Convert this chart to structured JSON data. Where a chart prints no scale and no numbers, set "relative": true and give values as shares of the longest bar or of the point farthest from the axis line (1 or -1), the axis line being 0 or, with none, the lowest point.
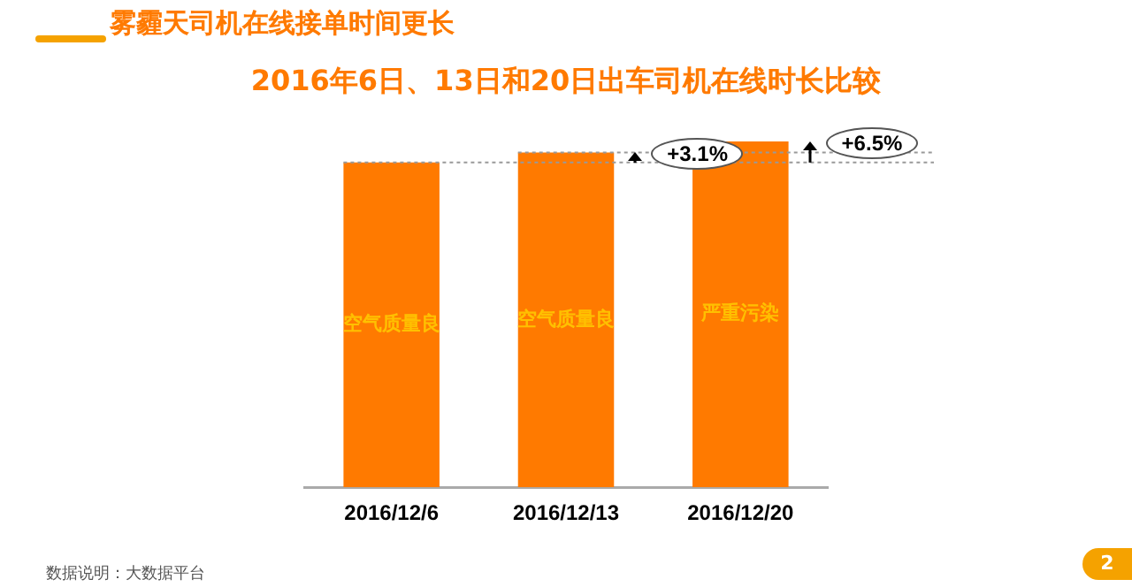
{
  "chart_data": {
    "type": "bar",
    "title": "雾霾天司机在线接单时间更长",
    "subtitle": "2016年6日、13日和20日出车司机在线时长比较",
    "categories": [
      "2016/12/6",
      "2016/12/13",
      "2016/12/20"
    ],
    "values": [
      0.939,
      0.968,
      1
    ],
    "color": "#ff7a00",
    "relative": true,
    "grid": false,
    "legend": false,
    "ref_lines": [
      {
        "axis": "y",
        "value": 0.939,
        "color": "#999999",
        "line_style": "dotted"
      },
      {
        "axis": "y",
        "value": 0.968,
        "color": "#999999",
        "line_style": "dotted"
      }
    ],
    "annotations": [
      "空气质量良",
      "空气质量良",
      "严重污染",
      "+3.1%",
      "+6.5%",
      "数据说明：大数据平台",
      "2"
    ]
  }
}
